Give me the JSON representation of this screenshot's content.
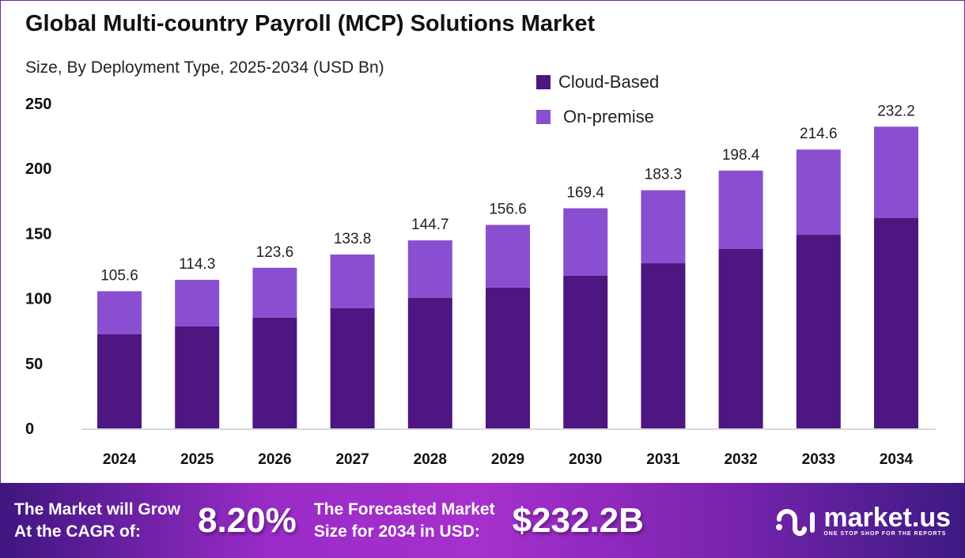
{
  "chart_data": {
    "type": "bar",
    "stacked": true,
    "title": "Global Multi-country Payroll (MCP) Solutions Market",
    "subtitle": "Size, By Deployment Type, 2025-2034 (USD Bn)",
    "categories": [
      "2024",
      "2025",
      "2026",
      "2027",
      "2028",
      "2029",
      "2030",
      "2031",
      "2032",
      "2033",
      "2034"
    ],
    "series": [
      {
        "name": "Cloud-Based",
        "color": "#4e1680",
        "values": [
          72.4,
          78.5,
          85.2,
          92.5,
          100.4,
          108.3,
          117.4,
          127.1,
          138.1,
          149.0,
          161.8
        ]
      },
      {
        "name": "On-premise",
        "color": "#8a4fd0",
        "values": [
          33.2,
          35.8,
          38.4,
          41.3,
          44.3,
          48.3,
          52.0,
          56.2,
          60.3,
          65.6,
          70.4
        ]
      }
    ],
    "totals": [
      "105.6",
      "114.3",
      "123.6",
      "133.8",
      "144.7",
      "156.6",
      "169.4",
      "183.3",
      "198.4",
      "214.6",
      "232.2"
    ],
    "ylim": [
      0,
      250
    ],
    "yticks": [
      "0",
      "50",
      "100",
      "150",
      "200",
      "250"
    ],
    "grid": false,
    "legend_position": "top-right"
  },
  "banner": {
    "cagr_label_1": "The Market will Grow",
    "cagr_label_2": "At the CAGR of:",
    "cagr_value": "8.20%",
    "forecast_label_1": "The Forecasted Market",
    "forecast_label_2": "Size for 2034 in USD:",
    "forecast_value": "$232.2B",
    "logo_name": "market.us",
    "logo_tagline": "ONE STOP SHOP FOR THE REPORTS"
  }
}
